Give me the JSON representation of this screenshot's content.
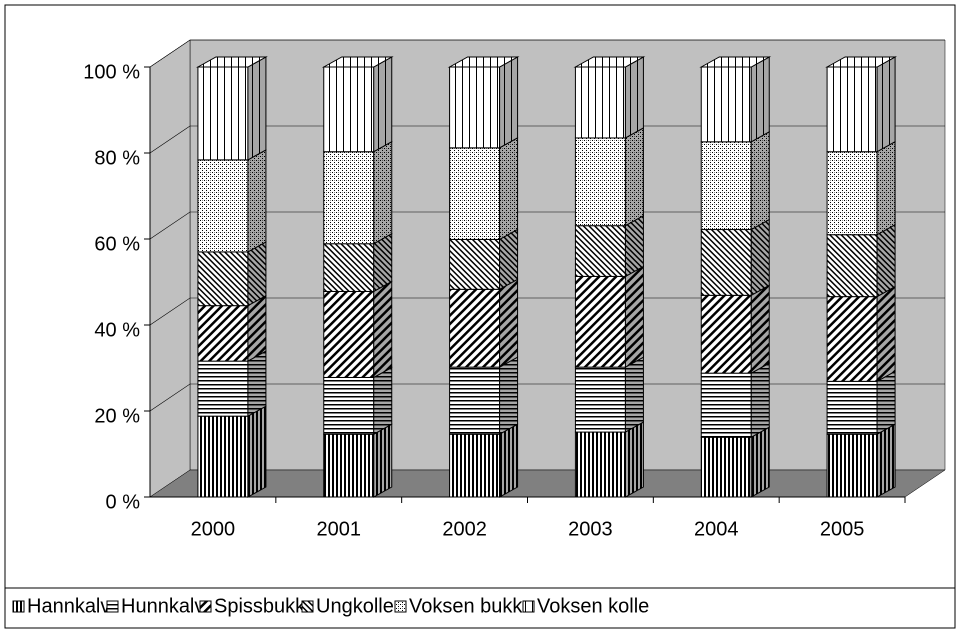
{
  "chart_data": {
    "type": "bar",
    "stacked": true,
    "categories": [
      "2000",
      "2001",
      "2002",
      "2003",
      "2004",
      "2005"
    ],
    "series": [
      {
        "name": "Hannkalv",
        "pattern": "vertical-dense",
        "values": [
          18.8,
          14.6,
          14.6,
          15.1,
          13.9,
          14.6
        ]
      },
      {
        "name": "Hunnkalv",
        "pattern": "horizontal",
        "values": [
          12.8,
          13.2,
          15.6,
          15.1,
          14.9,
          12.3
        ]
      },
      {
        "name": "Spissbukk",
        "pattern": "diagonal-wide",
        "values": [
          12.9,
          20.0,
          18.1,
          21.1,
          18.1,
          19.7
        ]
      },
      {
        "name": "Ungkolle",
        "pattern": "diagonal-back",
        "values": [
          12.5,
          11.1,
          11.6,
          11.8,
          15.3,
          14.4
        ]
      },
      {
        "name": "Voksen bukk",
        "pattern": "crosshatch",
        "values": [
          21.4,
          21.4,
          21.3,
          20.4,
          20.4,
          19.3
        ]
      },
      {
        "name": "Voksen kolle",
        "pattern": "vertical-sparse",
        "values": [
          21.6,
          19.7,
          18.8,
          16.5,
          17.4,
          19.7
        ]
      }
    ],
    "ylim": [
      0,
      100
    ],
    "yticks": [
      {
        "value": 0,
        "label": "0 %"
      },
      {
        "value": 20,
        "label": "20 %"
      },
      {
        "value": 40,
        "label": "40 %"
      },
      {
        "value": 60,
        "label": "60 %"
      },
      {
        "value": 80,
        "label": "80 %"
      },
      {
        "value": 100,
        "label": "100 %"
      }
    ],
    "grid": true,
    "legend": "bottom"
  }
}
